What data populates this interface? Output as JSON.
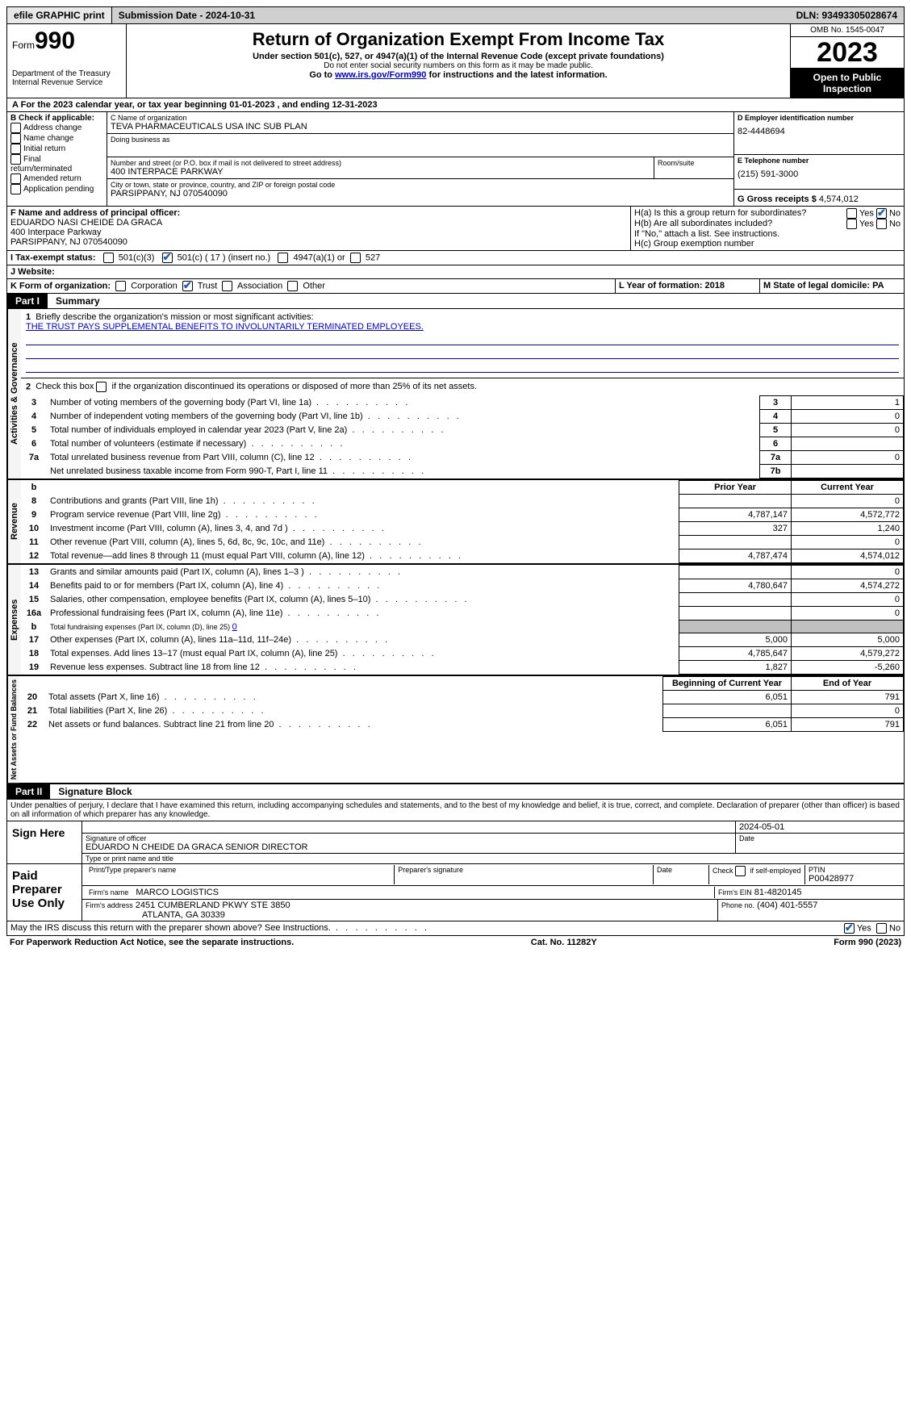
{
  "topbar": {
    "efile": "efile GRAPHIC print",
    "submission_label": "Submission Date - 2024-10-31",
    "dln_label": "DLN: 93493305028674"
  },
  "header": {
    "form_prefix": "Form",
    "form_num": "990",
    "dept": "Department of the Treasury",
    "irs": "Internal Revenue Service",
    "title": "Return of Organization Exempt From Income Tax",
    "sub": "Under section 501(c), 527, or 4947(a)(1) of the Internal Revenue Code (except private foundations)",
    "ssn_note": "Do not enter social security numbers on this form as it may be made public.",
    "goto_pre": "Go to ",
    "goto_link": "www.irs.gov/Form990",
    "goto_post": " for instructions and the latest information.",
    "omb": "OMB No. 1545-0047",
    "year": "2023",
    "inspection": "Open to Public Inspection"
  },
  "line_a": "For the 2023 calendar year, or tax year beginning 01-01-2023   , and ending 12-31-2023",
  "box_b": {
    "label": "B Check if applicable:",
    "items": [
      "Address change",
      "Name change",
      "Initial return",
      "Final return/terminated",
      "Amended return",
      "Application pending"
    ]
  },
  "box_c": {
    "name_label": "C Name of organization",
    "name": "TEVA PHARMACEUTICALS USA INC SUB PLAN",
    "dba_label": "Doing business as",
    "street_label": "Number and street (or P.O. box if mail is not delivered to street address)",
    "room_label": "Room/suite",
    "street": "400 INTERPACE PARKWAY",
    "city_label": "City or town, state or province, country, and ZIP or foreign postal code",
    "city": "PARSIPPANY, NJ  070540090"
  },
  "box_d": {
    "label": "D Employer identification number",
    "value": "82-4448694"
  },
  "box_e": {
    "label": "E Telephone number",
    "value": "(215) 591-3000"
  },
  "box_g": {
    "label": "G Gross receipts $",
    "value": "4,574,012"
  },
  "box_f": {
    "label": "F  Name and address of principal officer:",
    "name": "EDUARDO NASI CHEIDE DA GRACA",
    "street": "400 Interpace Parkway",
    "city": "PARSIPPANY, NJ  070540090"
  },
  "box_h": {
    "ha": "H(a)  Is this a group return for subordinates?",
    "hb": "H(b)  Are all subordinates included?",
    "hb_note": "If \"No,\" attach a list. See instructions.",
    "hc": "H(c)  Group exemption number"
  },
  "box_i": {
    "label": "I   Tax-exempt status:",
    "c3": "501(c)(3)",
    "cn": "501(c) ( 17 ) (insert no.)",
    "a1": "4947(a)(1) or",
    "s527": "527"
  },
  "box_j": {
    "label": "J   Website:"
  },
  "box_k": {
    "label": "K Form of organization:",
    "opts": [
      "Corporation",
      "Trust",
      "Association",
      "Other"
    ]
  },
  "box_l": {
    "label": "L Year of formation: 2018"
  },
  "box_m": {
    "label": "M State of legal domicile: PA"
  },
  "part1_tag": "Part I",
  "part1_title": "Summary",
  "side_labels": {
    "gov": "Activities & Governance",
    "rev": "Revenue",
    "exp": "Expenses",
    "net": "Net Assets or Fund Balances"
  },
  "summary": {
    "l1_label": "Briefly describe the organization's mission or most significant activities:",
    "mission": "THE TRUST PAYS SUPPLEMENTAL BENEFITS TO INVOLUNTARILY TERMINATED EMPLOYEES.",
    "l2_label": "Check this box        if the organization discontinued its operations or disposed of more than 25% of its net assets.",
    "rows_gov": [
      {
        "n": "3",
        "desc": "Number of voting members of the governing body (Part VI, line 1a)",
        "rn": "3",
        "v": "1"
      },
      {
        "n": "4",
        "desc": "Number of independent voting members of the governing body (Part VI, line 1b)",
        "rn": "4",
        "v": "0"
      },
      {
        "n": "5",
        "desc": "Total number of individuals employed in calendar year 2023 (Part V, line 2a)",
        "rn": "5",
        "v": "0"
      },
      {
        "n": "6",
        "desc": "Total number of volunteers (estimate if necessary)",
        "rn": "6",
        "v": ""
      },
      {
        "n": "7a",
        "desc": "Total unrelated business revenue from Part VIII, column (C), line 12",
        "rn": "7a",
        "v": "0"
      },
      {
        "n": "",
        "desc": "Net unrelated business taxable income from Form 990-T, Part I, line 11",
        "rn": "7b",
        "v": ""
      }
    ],
    "prior_hdr": "Prior Year",
    "current_hdr": "Current Year",
    "rows_rev": [
      {
        "n": "8",
        "desc": "Contributions and grants (Part VIII, line 1h)",
        "py": "",
        "cy": "0"
      },
      {
        "n": "9",
        "desc": "Program service revenue (Part VIII, line 2g)",
        "py": "4,787,147",
        "cy": "4,572,772"
      },
      {
        "n": "10",
        "desc": "Investment income (Part VIII, column (A), lines 3, 4, and 7d )",
        "py": "327",
        "cy": "1,240"
      },
      {
        "n": "11",
        "desc": "Other revenue (Part VIII, column (A), lines 5, 6d, 8c, 9c, 10c, and 11e)",
        "py": "",
        "cy": "0"
      },
      {
        "n": "12",
        "desc": "Total revenue—add lines 8 through 11 (must equal Part VIII, column (A), line 12)",
        "py": "4,787,474",
        "cy": "4,574,012"
      }
    ],
    "rows_exp": [
      {
        "n": "13",
        "desc": "Grants and similar amounts paid (Part IX, column (A), lines 1–3 )",
        "py": "",
        "cy": "0"
      },
      {
        "n": "14",
        "desc": "Benefits paid to or for members (Part IX, column (A), line 4)",
        "py": "4,780,647",
        "cy": "4,574,272"
      },
      {
        "n": "15",
        "desc": "Salaries, other compensation, employee benefits (Part IX, column (A), lines 5–10)",
        "py": "",
        "cy": "0"
      },
      {
        "n": "16a",
        "desc": "Professional fundraising fees (Part IX, column (A), line 11e)",
        "py": "",
        "cy": "0"
      },
      {
        "n": "b",
        "desc": "Total fundraising expenses (Part IX, column (D), line 25) 0",
        "py": "SHADE",
        "cy": "SHADE"
      },
      {
        "n": "17",
        "desc": "Other expenses (Part IX, column (A), lines 11a–11d, 11f–24e)",
        "py": "5,000",
        "cy": "5,000"
      },
      {
        "n": "18",
        "desc": "Total expenses. Add lines 13–17 (must equal Part IX, column (A), line 25)",
        "py": "4,785,647",
        "cy": "4,579,272"
      },
      {
        "n": "19",
        "desc": "Revenue less expenses. Subtract line 18 from line 12",
        "py": "1,827",
        "cy": "-5,260"
      }
    ],
    "begin_hdr": "Beginning of Current Year",
    "end_hdr": "End of Year",
    "rows_net": [
      {
        "n": "20",
        "desc": "Total assets (Part X, line 16)",
        "py": "6,051",
        "cy": "791"
      },
      {
        "n": "21",
        "desc": "Total liabilities (Part X, line 26)",
        "py": "",
        "cy": "0"
      },
      {
        "n": "22",
        "desc": "Net assets or fund balances. Subtract line 21 from line 20",
        "py": "6,051",
        "cy": "791"
      }
    ]
  },
  "part2_tag": "Part II",
  "part2_title": "Signature Block",
  "perjury": "Under penalties of perjury, I declare that I have examined this return, including accompanying schedules and statements, and to the best of my knowledge and belief, it is true, correct, and complete. Declaration of preparer (other than officer) is based on all information of which preparer has any knowledge.",
  "sign": {
    "here": "Sign Here",
    "date": "2024-05-01",
    "sig_label": "Signature of officer",
    "date_label": "Date",
    "name": "EDUARDO N CHEIDE DA GRACA  SENIOR DIRECTOR",
    "name_label": "Type or print name and title"
  },
  "paid": {
    "label": "Paid Preparer Use Only",
    "col1": "Print/Type preparer's name",
    "col2": "Preparer's signature",
    "col3": "Date",
    "col4_pre": "Check        if self-employed",
    "col5_label": "PTIN",
    "ptin": "P00428977",
    "firm_label": "Firm's name",
    "firm": "MARCO LOGISTICS",
    "ein_label": "Firm's EIN",
    "ein": "81-4820145",
    "addr_label": "Firm's address",
    "addr1": "2451 CUMBERLAND PKWY STE 3850",
    "addr2": "ATLANTA, GA  30339",
    "phone_label": "Phone no.",
    "phone": "(404) 401-5557"
  },
  "discuss": "May the IRS discuss this return with the preparer shown above? See Instructions.",
  "footer": {
    "left": "For Paperwork Reduction Act Notice, see the separate instructions.",
    "mid": "Cat. No. 11282Y",
    "right": "Form 990 (2023)"
  },
  "yes": "Yes",
  "no": "No"
}
